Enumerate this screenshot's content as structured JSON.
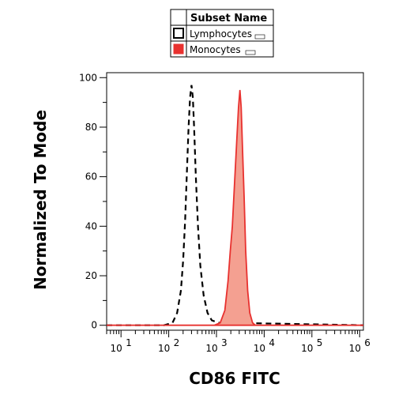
{
  "chart_data": {
    "type": "area",
    "xlabel": "CD86 FITC",
    "ylabel": "Normalized To Mode",
    "x_scale": "log",
    "xlim": [
      5,
      1200000
    ],
    "ylim": [
      -2,
      102
    ],
    "x_ticks": [
      {
        "base": "10",
        "exp": "1"
      },
      {
        "base": "10",
        "exp": "2"
      },
      {
        "base": "10",
        "exp": "3"
      },
      {
        "base": "10",
        "exp": "4"
      },
      {
        "base": "10",
        "exp": "5"
      },
      {
        "base": "10",
        "exp": "6"
      }
    ],
    "y_ticks": [
      "0",
      "20",
      "40",
      "60",
      "80",
      "100"
    ],
    "legend": {
      "title": "Subset Name",
      "placement": "top-center",
      "entries": [
        {
          "name": "Lymphocytes",
          "style": "open-box",
          "color": "#000000"
        },
        {
          "name": "Monocytes",
          "style": "filled-box",
          "color": "#e8312f"
        }
      ]
    },
    "series": [
      {
        "name": "Lymphocytes",
        "style": "dashed-line",
        "color": "#000000",
        "points": [
          [
            5,
            0
          ],
          [
            80,
            0
          ],
          [
            120,
            1
          ],
          [
            150,
            5
          ],
          [
            180,
            14
          ],
          [
            200,
            26
          ],
          [
            220,
            42
          ],
          [
            240,
            62
          ],
          [
            260,
            80
          ],
          [
            280,
            92
          ],
          [
            300,
            97
          ],
          [
            320,
            92
          ],
          [
            340,
            80
          ],
          [
            370,
            60
          ],
          [
            410,
            40
          ],
          [
            460,
            24
          ],
          [
            540,
            12
          ],
          [
            650,
            5
          ],
          [
            800,
            2
          ],
          [
            1100,
            1
          ],
          [
            2000,
            1
          ],
          [
            1200000,
            0
          ]
        ]
      },
      {
        "name": "Monocytes",
        "style": "filled-area",
        "color": "#e8312f",
        "fill": "#f4a091",
        "points": [
          [
            5,
            0
          ],
          [
            900,
            0
          ],
          [
            1200,
            1
          ],
          [
            1500,
            6
          ],
          [
            1750,
            18
          ],
          [
            1950,
            30
          ],
          [
            2150,
            40
          ],
          [
            2400,
            58
          ],
          [
            2650,
            74
          ],
          [
            2900,
            88
          ],
          [
            3100,
            95
          ],
          [
            3300,
            88
          ],
          [
            3500,
            72
          ],
          [
            3800,
            52
          ],
          [
            4100,
            30
          ],
          [
            4500,
            14
          ],
          [
            5000,
            5
          ],
          [
            5700,
            1
          ],
          [
            6500,
            0
          ],
          [
            1200000,
            0
          ]
        ]
      }
    ]
  }
}
